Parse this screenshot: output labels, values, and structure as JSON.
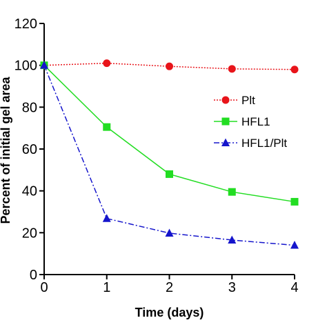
{
  "chart_data": {
    "type": "line",
    "title": "",
    "xlabel": "Time (days)",
    "ylabel": "Percent of initial gel area",
    "x": [
      0,
      1,
      2,
      3,
      4
    ],
    "xlim": [
      0,
      4
    ],
    "ylim": [
      0,
      120
    ],
    "xticks": [
      0,
      1,
      2,
      3,
      4
    ],
    "yticks": [
      0,
      20,
      40,
      60,
      80,
      100,
      120
    ],
    "grid": false,
    "legend_position": "right",
    "series": [
      {
        "name": "Plt",
        "values": [
          100,
          101,
          99.5,
          98.3,
          98
        ],
        "color": "#e8141a",
        "marker": "circle",
        "line": "dotted"
      },
      {
        "name": "HFL1",
        "values": [
          100,
          70.5,
          48,
          39.5,
          34.8
        ],
        "color": "#22dd22",
        "marker": "square",
        "line": "solid"
      },
      {
        "name": "HFL1/Plt",
        "values": [
          100,
          26.8,
          19.8,
          16.5,
          14
        ],
        "color": "#1515cc",
        "marker": "triangle",
        "line": "dash-dot"
      }
    ]
  }
}
